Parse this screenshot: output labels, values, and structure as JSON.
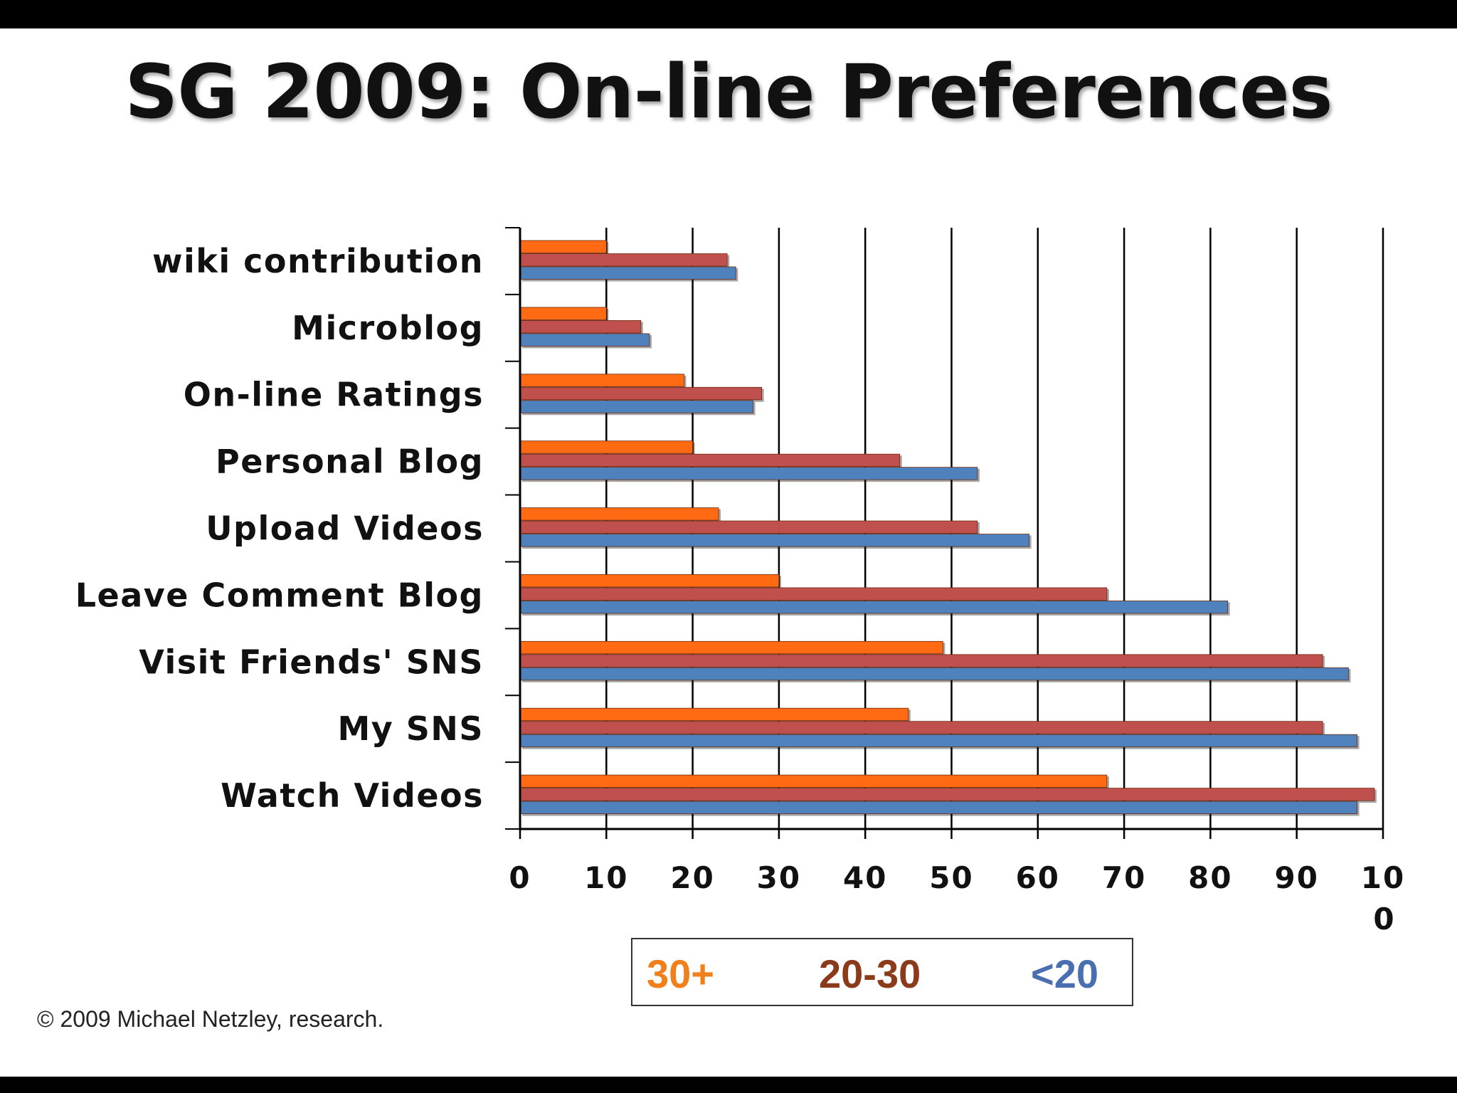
{
  "slide": {
    "title": "SG 2009: On-line Preferences",
    "copyright": "© 2009 Michael Netzley, research."
  },
  "legend": [
    {
      "label": "30+",
      "color": "#f0801c"
    },
    {
      "label": "20-30",
      "color": "#8b3a1a"
    },
    {
      "label": "<20",
      "color": "#4a6fb0"
    }
  ],
  "chart_data": {
    "type": "bar",
    "orientation": "horizontal",
    "categories": [
      "wiki contribution",
      "Microblog",
      "On-line Ratings",
      "Personal Blog",
      "Upload Videos",
      "Leave Comment Blog",
      "Visit Friends' SNS",
      "My SNS",
      "Watch Videos"
    ],
    "series": [
      {
        "name": "30+",
        "color": "#ff6a13",
        "values": [
          10,
          10,
          19,
          20,
          23,
          30,
          49,
          45,
          68
        ]
      },
      {
        "name": "20-30",
        "color": "#c0504d",
        "values": [
          24,
          14,
          28,
          44,
          53,
          68,
          93,
          93,
          99
        ]
      },
      {
        "name": "<20",
        "color": "#4f81bd",
        "values": [
          25,
          15,
          27,
          53,
          59,
          82,
          96,
          97,
          97
        ]
      }
    ],
    "x_ticks": [
      "0",
      "10",
      "20",
      "30",
      "40",
      "50",
      "60",
      "70",
      "80",
      "90",
      "10"
    ],
    "x_tick_last_second_line": "0",
    "xlim": [
      0,
      100
    ],
    "grid": "vertical",
    "legend_position": "bottom"
  }
}
